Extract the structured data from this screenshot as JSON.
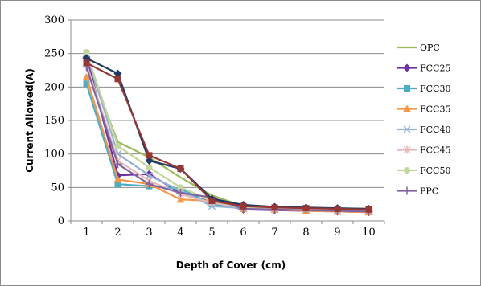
{
  "chart_data": {
    "type": "line",
    "title": "",
    "xlabel": "Depth of Cover (cm)",
    "ylabel": "Current Allowed(A)",
    "x": [
      1,
      2,
      3,
      4,
      5,
      6,
      7,
      8,
      9,
      10
    ],
    "ylim": [
      0,
      300
    ],
    "yticks": [
      0,
      50,
      100,
      150,
      200,
      250,
      300
    ],
    "grid": "horizontal",
    "legend": "right",
    "series": [
      {
        "name": "OPC",
        "color": "#9bbb59",
        "marker": "none",
        "values": [
          240,
          118,
          95,
          65,
          38,
          22,
          20,
          19,
          19,
          18
        ]
      },
      {
        "name": "FCC25",
        "color": "#7030a0",
        "marker": "diamond",
        "values": [
          245,
          68,
          70,
          42,
          28,
          17,
          16,
          15,
          14,
          13
        ]
      },
      {
        "name": "FCC30",
        "color": "#4bacc6",
        "marker": "square",
        "values": [
          205,
          55,
          52,
          48,
          25,
          20,
          19,
          18,
          18,
          17
        ]
      },
      {
        "name": "FCC35",
        "color": "#f79646",
        "marker": "triangle",
        "values": [
          215,
          62,
          55,
          32,
          30,
          18,
          17,
          15,
          14,
          13
        ]
      },
      {
        "name": "FCC40",
        "color": "#95b3d7",
        "marker": "x",
        "values": [
          250,
          100,
          68,
          45,
          22,
          19,
          18,
          17,
          16,
          15
        ]
      },
      {
        "name": "FCC45",
        "color": "#e6b9b8",
        "marker": "star",
        "values": [
          235,
          90,
          60,
          40,
          27,
          20,
          19,
          18,
          17,
          16
        ]
      },
      {
        "name": "FCC50",
        "color": "#c3d69b",
        "marker": "circle",
        "values": [
          252,
          112,
          80,
          50,
          30,
          21,
          20,
          19,
          18,
          17
        ]
      },
      {
        "name": "PPC",
        "color": "#8064a2",
        "marker": "plus",
        "values": [
          230,
          85,
          55,
          42,
          35,
          18,
          17,
          16,
          15,
          14
        ]
      },
      {
        "color": "#1f3864",
        "marker": "diamond",
        "values": [
          243,
          220,
          90,
          78,
          33,
          24,
          21,
          20,
          19,
          18
        ]
      },
      {
        "color": "#953735",
        "marker": "square",
        "values": [
          236,
          212,
          98,
          78,
          30,
          22,
          20,
          19,
          18,
          17
        ]
      }
    ]
  }
}
